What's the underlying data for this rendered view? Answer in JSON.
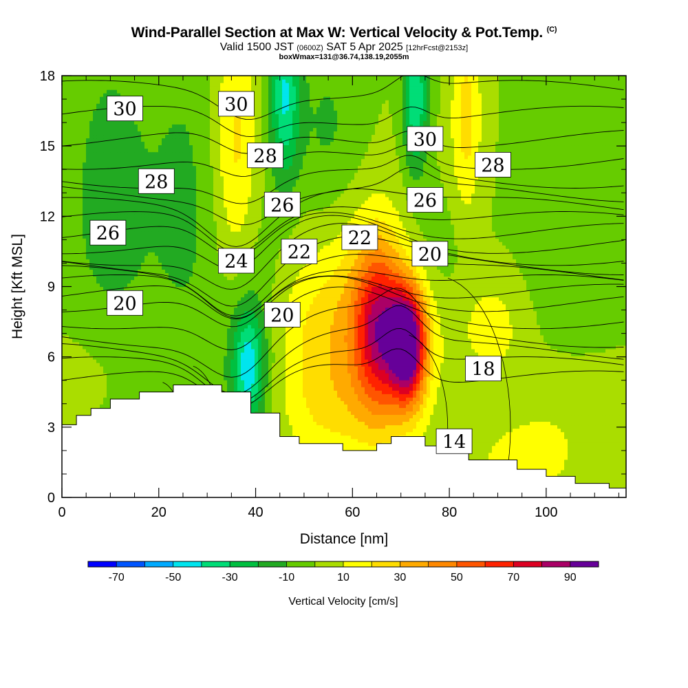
{
  "title": {
    "main": "Wind-Parallel Section at Max W: Vertical Velocity & Pot.Temp.",
    "copyright_mark": "(C)",
    "valid_prefix": "Valid 1500 JST",
    "valid_utc": "(0600Z)",
    "valid_date": "SAT 5 Apr 2025",
    "forecast_info": "[12hrFcst@2153z]",
    "box_info": "boxWmax=131@36.74,138.19,2055m"
  },
  "chart_data": {
    "type": "heatmap",
    "xlabel": "Distance [nm]",
    "ylabel": "Height [Kft MSL]",
    "xlim": [
      0,
      116.5
    ],
    "ylim": [
      0,
      18
    ],
    "x_ticks": [
      0,
      20,
      40,
      60,
      80,
      100
    ],
    "y_ticks": [
      0,
      3,
      6,
      9,
      12,
      15,
      18
    ],
    "colorbar": {
      "label": "Vertical Velocity [cm/s]",
      "tick_labels": [
        -70,
        -50,
        -30,
        -10,
        10,
        30,
        50,
        70,
        90
      ],
      "levels": [
        -80,
        -70,
        -60,
        -50,
        -40,
        -30,
        -20,
        -10,
        0,
        10,
        20,
        30,
        40,
        50,
        60,
        70,
        80,
        90,
        100
      ],
      "colors": [
        "#0000ff",
        "#0055ff",
        "#00aaff",
        "#00e5ee",
        "#00dd77",
        "#00c040",
        "#22aa22",
        "#66cc00",
        "#aadd00",
        "#ffff00",
        "#ffdd00",
        "#ffaa00",
        "#ff8800",
        "#ff5500",
        "#ff2200",
        "#dd0022",
        "#aa0066",
        "#660099"
      ]
    },
    "terrain_height_kft": {
      "x": [
        0,
        3,
        6,
        10,
        16,
        23,
        33,
        39,
        45,
        49,
        58,
        65,
        68,
        75,
        78,
        84,
        94,
        100,
        106,
        113,
        116.5
      ],
      "y": [
        3.1,
        3.5,
        3.8,
        4.2,
        4.5,
        4.8,
        4.5,
        3.6,
        2.6,
        2.3,
        2.0,
        2.3,
        2.6,
        2.2,
        1.9,
        1.6,
        1.2,
        0.9,
        0.6,
        0.4,
        0.6
      ]
    },
    "w_features": [
      {
        "type": "updraft",
        "x": 71.5,
        "y": 6.5,
        "max_w": 100
      },
      {
        "type": "updraft",
        "x": 65,
        "y": 7.2,
        "max_w": 65
      },
      {
        "type": "downdraft",
        "x": 39,
        "y": 5.5,
        "min_w": -40
      },
      {
        "type": "downdraft",
        "x": 46,
        "y": 16.5,
        "min_w": -40
      },
      {
        "type": "downdraft",
        "x": 73,
        "y": 16.5,
        "min_w": -40
      }
    ],
    "theta_contour_labels": [
      {
        "text": "30",
        "x": 13,
        "y": 16.6
      },
      {
        "text": "30",
        "x": 36,
        "y": 16.8
      },
      {
        "text": "30",
        "x": 75,
        "y": 15.3
      },
      {
        "text": "28",
        "x": 42,
        "y": 14.6
      },
      {
        "text": "28",
        "x": 89,
        "y": 14.2
      },
      {
        "text": "28",
        "x": 19.5,
        "y": 13.5
      },
      {
        "text": "26",
        "x": 45.5,
        "y": 12.5
      },
      {
        "text": "26",
        "x": 75,
        "y": 12.7
      },
      {
        "text": "26",
        "x": 9.5,
        "y": 11.3
      },
      {
        "text": "24",
        "x": 36,
        "y": 10.1
      },
      {
        "text": "22",
        "x": 49,
        "y": 10.5
      },
      {
        "text": "22",
        "x": 61.5,
        "y": 11.1
      },
      {
        "text": "20",
        "x": 76,
        "y": 10.4
      },
      {
        "text": "20",
        "x": 13,
        "y": 8.3
      },
      {
        "text": "20",
        "x": 45.5,
        "y": 7.8
      },
      {
        "text": "18",
        "x": 87,
        "y": 5.5
      },
      {
        "text": "14",
        "x": 81,
        "y": 2.4
      }
    ]
  }
}
